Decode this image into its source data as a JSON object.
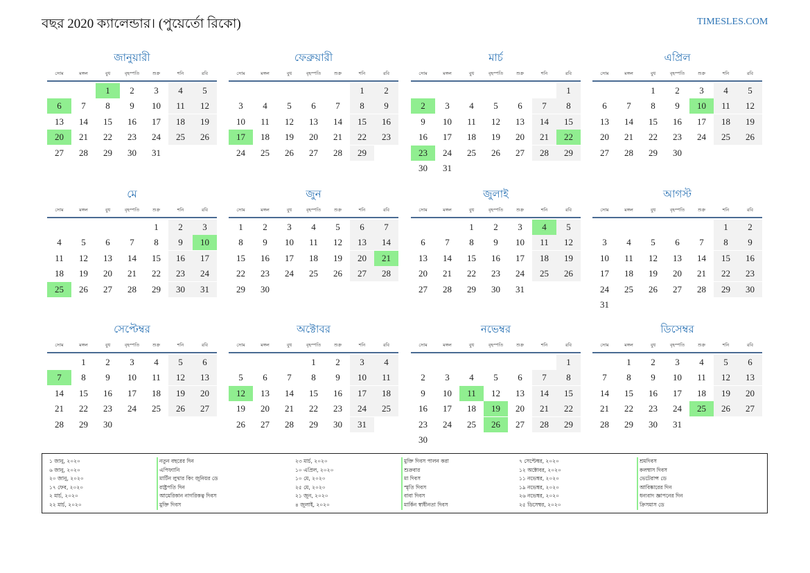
{
  "header": {
    "title": "বছর 2020 ক্যালেন্ডার। (পুয়ের্তো রিকো)",
    "site": "TIMESLES.COM"
  },
  "weekdays": [
    "সোম",
    "মঙ্গল",
    "বুধ",
    "বৃহস্পতি",
    "শুক্র",
    "শনি",
    "রবি"
  ],
  "months": [
    {
      "name": "জানুয়ারী",
      "offset": 2,
      "days": 31,
      "holidays": [
        1,
        6,
        20
      ]
    },
    {
      "name": "ফেব্রুয়ারী",
      "offset": 5,
      "days": 29,
      "holidays": [
        17
      ]
    },
    {
      "name": "মার্চ",
      "offset": 6,
      "days": 31,
      "holidays": [
        2,
        22,
        23
      ]
    },
    {
      "name": "এপ্রিল",
      "offset": 2,
      "days": 30,
      "holidays": [
        10
      ]
    },
    {
      "name": "মে",
      "offset": 4,
      "days": 31,
      "holidays": [
        10,
        25
      ]
    },
    {
      "name": "জুন",
      "offset": 0,
      "days": 30,
      "holidays": [
        21
      ]
    },
    {
      "name": "জুলাই",
      "offset": 2,
      "days": 31,
      "holidays": [
        4
      ]
    },
    {
      "name": "আগস্ট",
      "offset": 5,
      "days": 31,
      "holidays": []
    },
    {
      "name": "সেপ্টেম্বর",
      "offset": 1,
      "days": 30,
      "holidays": [
        7
      ]
    },
    {
      "name": "অক্টোবর",
      "offset": 3,
      "days": 31,
      "holidays": [
        12
      ]
    },
    {
      "name": "নভেম্বর",
      "offset": 6,
      "days": 30,
      "holidays": [
        11,
        19,
        26
      ]
    },
    {
      "name": "ডিসেম্বর",
      "offset": 1,
      "days": 31,
      "holidays": [
        25
      ]
    }
  ],
  "holiday_list": [
    {
      "date": "১ জানু, ২০২০",
      "name": "নতুন বছরের দিন"
    },
    {
      "date": "৬ জানু, ২০২০",
      "name": "এপিফ্যানি"
    },
    {
      "date": "২০ জানু, ২০২০",
      "name": "মার্টিন লুথার কিং জুনিয়র ডে"
    },
    {
      "date": "১৭ ফেব, ২০২০",
      "name": "রাষ্ট্রপতি দিন"
    },
    {
      "date": "২ মার্চ, ২০২০",
      "name": "আমেরিকান নাগরিকত্ব দিবস"
    },
    {
      "date": "২২ মার্চ, ২০২০",
      "name": "মুক্তি দিবস"
    },
    {
      "date": "২৩ মার্চ, ২০২০",
      "name": "মুক্তি দিবস পালন করা"
    },
    {
      "date": "১০ এপ্রিল, ২০২০",
      "name": "শুক্রবার"
    },
    {
      "date": "১০ মে, ২০২০",
      "name": "মা দিবস"
    },
    {
      "date": "২৫ মে, ২০২০",
      "name": "স্মৃতি দিবস"
    },
    {
      "date": "২১ জুন, ২০২০",
      "name": "বাবা দিবস"
    },
    {
      "date": "৪ জুলাই, ২০২০",
      "name": "মার্কিন স্বাধীনতা দিবস"
    },
    {
      "date": "৭ সেপ্টেম্বর, ২০২০",
      "name": "শ্রমদিবস"
    },
    {
      "date": "১২ অক্টোবর, ২০২০",
      "name": "কলম্বাস দিবস"
    },
    {
      "date": "১১ নভেম্বর, ২০২০",
      "name": "ভেটেরান্স ডে"
    },
    {
      "date": "১৯ নভেম্বর, ২০২০",
      "name": "আবিষ্কারের দিন"
    },
    {
      "date": "২৬ নভেম্বর, ২০২০",
      "name": "ধন্যবাদ জ্ঞাপনের দিন"
    },
    {
      "date": "২৫ ডিসেম্বর, ২০২০",
      "name": "ক্রিসমাস ডে"
    }
  ]
}
